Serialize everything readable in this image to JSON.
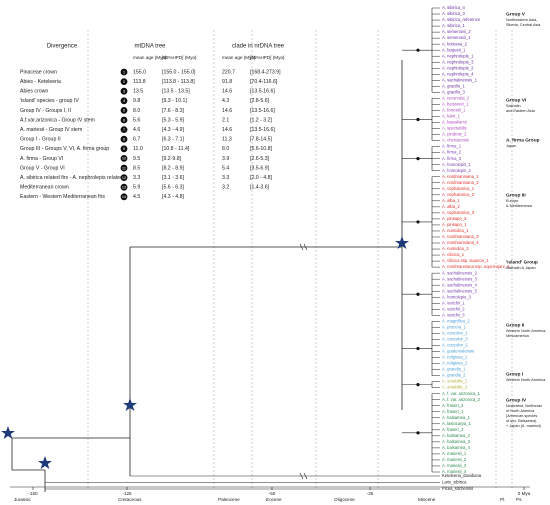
{
  "header": {
    "title": "Divergence"
  },
  "table": {
    "group_headers": [
      "mtDNA tree",
      "clade in nrDNA tree"
    ],
    "sub_headers": [
      "mean age (Mya)",
      "[95%HPD] (Mya)",
      "mean age (Mya)",
      "[95%HPD] (Mya)"
    ],
    "rows": [
      {
        "name": "Pinaceae crown",
        "num": "1",
        "mt_mean": "155.0",
        "mt_hpd": "[155.0 - 155.0]",
        "nr_mean": "220.7",
        "nr_hpd": "[168.4-273.9]"
      },
      {
        "name": "Abies - Keteleeria",
        "num": "2",
        "mt_mean": "113.8",
        "mt_hpd": "[113.8 - 113.8]",
        "nr_mean": "91.8",
        "nr_hpd": "[70.4-116.6]"
      },
      {
        "name": "Abies crown",
        "num": "3",
        "mt_mean": "13.5",
        "mt_hpd": "[13.5 - 13.5]",
        "nr_mean": "14.6",
        "nr_hpd": "[13.5-16.6]"
      },
      {
        "name": "'island' species - group IV",
        "num": "4",
        "mt_mean": "9.8",
        "mt_hpd": "[9.3 - 10.1]",
        "nr_mean": "4.3",
        "nr_hpd": "[2.8-5.6]"
      },
      {
        "name": "Group IV - Groups I, II",
        "num": "5",
        "mt_mean": "8.0",
        "mt_hpd": "[7.6 - 8.3]",
        "nr_mean": "14.6",
        "nr_hpd": "[13.5-16.6]"
      },
      {
        "name": "A.f.var.arizonica - Group IV stem",
        "num": "6",
        "mt_mean": "5.6",
        "mt_hpd": "[5.3 - 5.9]",
        "nr_mean": "2.1",
        "nr_hpd": "[1.2 - 3.2]"
      },
      {
        "name": "A. mariesii - Group IV stem",
        "num": "7",
        "mt_mean": "4.6",
        "mt_hpd": "[4.3 - 4.9]",
        "nr_mean": "14.6",
        "nr_hpd": "[13.5-16.6]"
      },
      {
        "name": "Group I - Group II",
        "num": "8",
        "mt_mean": "6.7",
        "mt_hpd": "[6.3 - 7.1]",
        "nr_mean": "11.3",
        "nr_hpd": "[7.8-14.5]"
      },
      {
        "name": "Group III - Groups V, VI, A. firma group",
        "num": "9",
        "mt_mean": "11.0",
        "mt_hpd": "[10.8 - 11.4]",
        "nr_mean": "8.0",
        "nr_hpd": "[5.6-10.8]"
      },
      {
        "name": "A. firma - Group VI",
        "num": "10",
        "mt_mean": "9.5",
        "mt_hpd": "[9.2-9.8]",
        "nr_mean": "3.9",
        "nr_hpd": "[2.6-5.3]"
      },
      {
        "name": "Group V - Group VI",
        "num": "11",
        "mt_mean": "8.5",
        "mt_hpd": "[8.2 - 8.9]",
        "nr_mean": "5.4",
        "nr_hpd": "[3.5-6.9]"
      },
      {
        "name": "A. sibirica related firs - A. nephrolepis related",
        "num": "12",
        "mt_mean": "3.3",
        "mt_hpd": "[3.1 - 3.6]",
        "nr_mean": "3.3",
        "nr_hpd": "[2.0 - 4.8]"
      },
      {
        "name": "Mediterranean crown",
        "num": "13",
        "mt_mean": "5.9",
        "mt_hpd": "[5.6 - 6.3]",
        "nr_mean": "3.2",
        "nr_hpd": "[1.4-3.6]"
      },
      {
        "name": "Eastern - Western Mediterranean firs",
        "num": "14",
        "mt_mean": "4.5",
        "mt_hpd": "[4.3 - 4.8]",
        "nr_mean": null,
        "nr_hpd": null
      }
    ]
  },
  "tip_groups": [
    {
      "color": "#6b2fa3",
      "tips": [
        "A. sibirica_4",
        "A. sibirica_3",
        "A. sibirica_reference",
        "A. sibirica_1",
        "A. semenovii_2",
        "A. semenovii_1",
        "A. koreana_2",
        "A. fargesii_1",
        "A. nephrolepis_1",
        "A. nephrolepis_3",
        "A. nephrolepis_2",
        "A. nephrolepis_4",
        "A. sachalinensis_1",
        "A. gracilis_1",
        "A. gracilis_3"
      ]
    },
    {
      "color": "#b04cc0",
      "tips": [
        "A. recurvata_2",
        "A. beissneri_1",
        "A. forrestii_1",
        "A. fabri_1",
        "A. kawakamii",
        "A. spectabilis",
        "A. pindrow_2",
        "A. chensiensis"
      ]
    },
    {
      "color": "#7a3fb0",
      "tips": [
        "A. firma_1",
        "A. firma_2",
        "A. firma_3",
        "A. homolepis_1",
        "A. homolepis_2"
      ]
    },
    {
      "color": "#e0302a",
      "tips": [
        "A. nordmanniana_1",
        "A. nordmanniana_2",
        "A. cephalonica_1",
        "A. cephalonica_2",
        "A. alba_1",
        "A. alba_2",
        "A. cephalonica_3",
        "A. pinsapo_2",
        "A. pinsapo_1",
        "A. numidica_1",
        "A. nordmanniana_3",
        "A. nordmanniana_4",
        "A. numidica_2",
        "A. cilicica_1",
        "A. cilicica ssp. isaurica_1",
        "A. nordmanniana ssp. equi-trojani_3"
      ]
    },
    {
      "color": "#7a3fb0",
      "tips": [
        "A. sachalinensis_2",
        "A. sachalinensis_3",
        "A. sachalinensis_4",
        "A. sachalinensis_5",
        "A. homolepis_3",
        "A. veitchii_1",
        "A. veitchii_2",
        "A. veitchii_3"
      ]
    },
    {
      "color": "#4aa0d8",
      "tips": [
        "A. magnifica_2",
        "A. procera_1",
        "A. concolor_1",
        "A. concolor_3",
        "A. concolor_2",
        "A. guatemalensis",
        "A. religiosa_1",
        "A. religiosa_2",
        "A. grandis_1",
        "A. grandis_2"
      ]
    },
    {
      "color": "#b8b040",
      "tips": [
        "A. amabilis_1",
        "A. amabilis_2"
      ]
    },
    {
      "color": "#2a8a4a",
      "tips": [
        "A. f. var. arizonica_1",
        "A. f. var. arizonica_2",
        "A. fraseri_2",
        "A. fraseri_1",
        "A. balsamea_1",
        "A. lasiocarpa_1",
        "A. fraseri_3",
        "A. balsamea_2",
        "A. balsamea_3",
        "A. balsamea_4",
        "A. mariesii_1",
        "A. mariesii_2",
        "A. mariesii_3",
        "A. mariesii_4"
      ]
    }
  ],
  "outgroups": [
    "Keteleeria_davidiana",
    "Larix_sibirica",
    "Picea_sitchensis"
  ],
  "group_labels": [
    {
      "title": "Group V",
      "lines": [
        "Northeastern Asia,",
        "Siberia, Central Asia"
      ]
    },
    {
      "title": "Group VI",
      "lines": [
        "Sakhalin",
        "and Eastern Asia"
      ]
    },
    {
      "title": "A. firma Group",
      "lines": [
        "Japan"
      ]
    },
    {
      "title": "Group III",
      "lines": [
        "Europe",
        "& Mediterranea"
      ]
    },
    {
      "title": "'island' Group",
      "lines": [
        "Sakhalin & Japan"
      ]
    },
    {
      "title": "Group II",
      "lines": [
        "Western North America,",
        "Mesoamerica"
      ]
    },
    {
      "title": "Group I",
      "lines": [
        "Western North America"
      ]
    },
    {
      "title": "Group IV",
      "lines": [
        "Northwest, Northeast",
        "of North America",
        "(American species",
        "of sec. Balsamea)",
        "+ Japan (A. mariesii)"
      ]
    }
  ],
  "axis_ticks": [
    "-150",
    "-125",
    "-50",
    "-25",
    "0 Mya"
  ],
  "eras": [
    "Jurassic",
    "Cretaceous",
    "Paleocene",
    "Eocene",
    "Oligocene",
    "Miocene",
    "Pl.",
    "Ps."
  ]
}
